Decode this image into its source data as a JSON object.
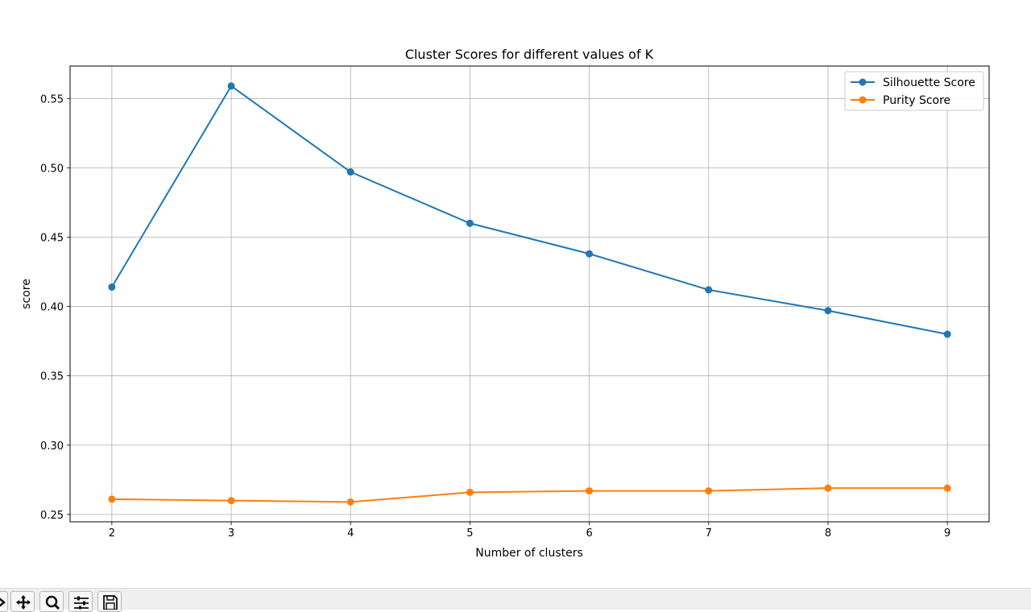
{
  "chart_data": {
    "type": "line",
    "title": "Cluster Scores for different values of K",
    "xlabel": "Number of clusters",
    "ylabel": "score",
    "x": [
      2,
      3,
      4,
      5,
      6,
      7,
      8,
      9
    ],
    "xticks": [
      "2",
      "3",
      "4",
      "5",
      "6",
      "7",
      "8",
      "9"
    ],
    "yticks": [
      "0.25",
      "0.30",
      "0.35",
      "0.40",
      "0.45",
      "0.50",
      "0.55"
    ],
    "xlim": [
      1.65,
      9.35
    ],
    "ylim": [
      0.2447,
      0.5734
    ],
    "grid": true,
    "legend_position": "top-right",
    "series": [
      {
        "name": "Silhouette Score",
        "color": "#1f77b4",
        "values": [
          0.414,
          0.559,
          0.497,
          0.46,
          0.438,
          0.412,
          0.397,
          0.38
        ]
      },
      {
        "name": "Purity Score",
        "color": "#ff7f0e",
        "values": [
          0.261,
          0.26,
          0.259,
          0.266,
          0.267,
          0.267,
          0.269,
          0.269
        ]
      }
    ]
  },
  "toolbar": {
    "buttons": [
      "forward-icon",
      "pan-icon",
      "zoom-icon",
      "configure-subplots-icon",
      "save-icon"
    ]
  }
}
